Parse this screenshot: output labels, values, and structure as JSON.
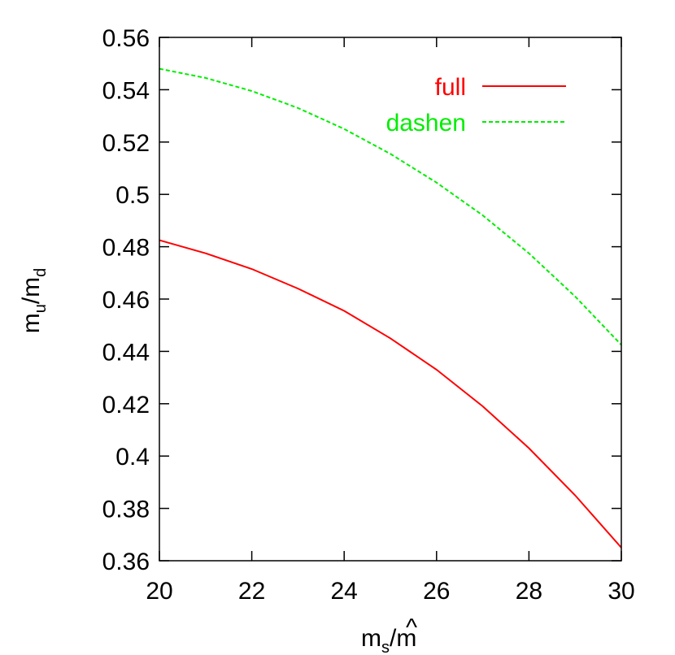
{
  "chart_data": {
    "type": "line",
    "xlabel": {
      "main": "m",
      "sub": "s",
      "rest": "/m",
      "hat": "^"
    },
    "ylabel": {
      "main1": "m",
      "sub1": "u",
      "slash": "/m",
      "sub2": "d"
    },
    "xlim": [
      20,
      30
    ],
    "ylim": [
      0.36,
      0.56
    ],
    "xticks": [
      20,
      22,
      24,
      26,
      28,
      30
    ],
    "yticks": [
      0.36,
      0.38,
      0.4,
      0.42,
      0.44,
      0.46,
      0.48,
      0.5,
      0.52,
      0.54,
      0.56
    ],
    "xtick_labels": [
      "20",
      "22",
      "24",
      "26",
      "28",
      "30"
    ],
    "ytick_labels": [
      "0.36",
      "0.38",
      "0.4",
      "0.42",
      "0.44",
      "0.46",
      "0.48",
      "0.5",
      "0.52",
      "0.54",
      "0.56"
    ],
    "grid": false,
    "legend_position": "top-right",
    "series": [
      {
        "name": "full",
        "color": "#ff0000",
        "dash": "solid",
        "x": [
          20,
          21,
          22,
          23,
          24,
          25,
          26,
          27,
          28,
          29,
          30
        ],
        "y": [
          0.4825,
          0.4775,
          0.4715,
          0.464,
          0.4555,
          0.445,
          0.433,
          0.419,
          0.403,
          0.385,
          0.365
        ]
      },
      {
        "name": "dashen",
        "color": "#00ee00",
        "dash": "dashed",
        "x": [
          20,
          21,
          22,
          23,
          24,
          25,
          26,
          27,
          28,
          29,
          30
        ],
        "y": [
          0.548,
          0.5445,
          0.5395,
          0.533,
          0.525,
          0.5155,
          0.5045,
          0.492,
          0.4775,
          0.461,
          0.4425
        ]
      }
    ]
  }
}
